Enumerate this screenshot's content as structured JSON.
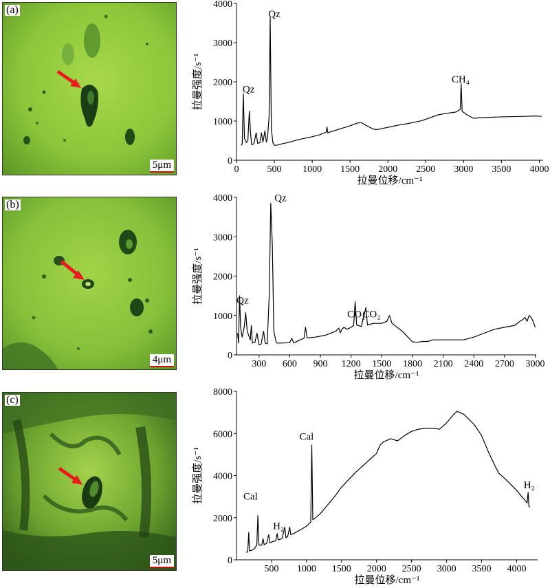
{
  "colors": {
    "photo_base": "#8fcc3a",
    "arrow": "#e81c1c",
    "scale_underline": "#d01010",
    "line": "#000000"
  },
  "photos": [
    {
      "label": "(a)",
      "scale": "5μm"
    },
    {
      "label": "(b)",
      "scale": "4μm"
    },
    {
      "label": "(c)",
      "scale": "5μm"
    }
  ],
  "chart_data": [
    {
      "type": "line",
      "xlabel": "拉曼位移/cm⁻¹",
      "ylabel": "拉曼强度/s⁻¹",
      "xlim": [
        0,
        4050
      ],
      "ylim": [
        0,
        4000
      ],
      "xticks": [
        0,
        500,
        1000,
        1500,
        2000,
        2500,
        3000,
        3500,
        4000
      ],
      "yticks": [
        0,
        1000,
        2000,
        3000,
        4000
      ],
      "annotations": [
        {
          "text": "Qz",
          "x": 160,
          "y": 1730
        },
        {
          "text": "Qz",
          "x": 500,
          "y": 3650
        },
        {
          "text": "CH₄",
          "x": 2960,
          "y": 1980
        }
      ],
      "points": [
        [
          60,
          380
        ],
        [
          75,
          420
        ],
        [
          90,
          1700
        ],
        [
          105,
          560
        ],
        [
          130,
          450
        ],
        [
          150,
          500
        ],
        [
          170,
          1250
        ],
        [
          185,
          700
        ],
        [
          200,
          400
        ],
        [
          230,
          420
        ],
        [
          260,
          700
        ],
        [
          280,
          430
        ],
        [
          310,
          450
        ],
        [
          330,
          700
        ],
        [
          350,
          460
        ],
        [
          375,
          750
        ],
        [
          395,
          460
        ],
        [
          410,
          600
        ],
        [
          430,
          1100
        ],
        [
          445,
          3650
        ],
        [
          460,
          800
        ],
        [
          480,
          450
        ],
        [
          500,
          380
        ],
        [
          550,
          390
        ],
        [
          600,
          420
        ],
        [
          700,
          460
        ],
        [
          800,
          520
        ],
        [
          900,
          560
        ],
        [
          1000,
          600
        ],
        [
          1100,
          650
        ],
        [
          1185,
          720
        ],
        [
          1195,
          850
        ],
        [
          1205,
          700
        ],
        [
          1300,
          760
        ],
        [
          1400,
          820
        ],
        [
          1500,
          880
        ],
        [
          1600,
          950
        ],
        [
          1650,
          960
        ],
        [
          1700,
          900
        ],
        [
          1800,
          800
        ],
        [
          1850,
          780
        ],
        [
          1950,
          820
        ],
        [
          2050,
          860
        ],
        [
          2150,
          900
        ],
        [
          2250,
          930
        ],
        [
          2350,
          970
        ],
        [
          2450,
          1010
        ],
        [
          2550,
          1080
        ],
        [
          2650,
          1150
        ],
        [
          2750,
          1190
        ],
        [
          2900,
          1230
        ],
        [
          2955,
          1300
        ],
        [
          2968,
          1950
        ],
        [
          2980,
          1250
        ],
        [
          3050,
          1150
        ],
        [
          3130,
          1070
        ],
        [
          3200,
          1080
        ],
        [
          3400,
          1100
        ],
        [
          3600,
          1110
        ],
        [
          3800,
          1120
        ],
        [
          3950,
          1130
        ],
        [
          4030,
          1120
        ]
      ]
    },
    {
      "type": "line",
      "xlabel": "拉曼位移/cm⁻¹",
      "ylabel": "拉曼强度/s⁻¹",
      "xlim": [
        80,
        3010
      ],
      "ylim": [
        0,
        4000
      ],
      "xticks": [
        300,
        600,
        900,
        1200,
        1500,
        1800,
        2100,
        2400,
        2700,
        3000
      ],
      "yticks": [
        0,
        1000,
        2000,
        3000,
        4000
      ],
      "annotations": [
        {
          "text": "Qz",
          "x": 140,
          "y": 1300
        },
        {
          "text": "Qz",
          "x": 510,
          "y": 3900
        },
        {
          "text": "CO₂",
          "x": 1250,
          "y": 950
        },
        {
          "text": "CO₂",
          "x": 1400,
          "y": 950
        }
      ],
      "points": [
        [
          90,
          550
        ],
        [
          100,
          300
        ],
        [
          110,
          1500
        ],
        [
          120,
          700
        ],
        [
          135,
          450
        ],
        [
          155,
          700
        ],
        [
          170,
          1070
        ],
        [
          185,
          600
        ],
        [
          215,
          380
        ],
        [
          225,
          750
        ],
        [
          235,
          300
        ],
        [
          260,
          320
        ],
        [
          280,
          550
        ],
        [
          300,
          260
        ],
        [
          320,
          270
        ],
        [
          345,
          600
        ],
        [
          360,
          300
        ],
        [
          380,
          280
        ],
        [
          400,
          1500
        ],
        [
          415,
          3850
        ],
        [
          430,
          2800
        ],
        [
          445,
          600
        ],
        [
          470,
          300
        ],
        [
          520,
          300
        ],
        [
          600,
          310
        ],
        [
          620,
          420
        ],
        [
          640,
          300
        ],
        [
          700,
          380
        ],
        [
          740,
          420
        ],
        [
          755,
          700
        ],
        [
          770,
          430
        ],
        [
          850,
          450
        ],
        [
          950,
          500
        ],
        [
          1050,
          600
        ],
        [
          1080,
          680
        ],
        [
          1095,
          560
        ],
        [
          1110,
          650
        ],
        [
          1130,
          700
        ],
        [
          1160,
          650
        ],
        [
          1200,
          700
        ],
        [
          1225,
          750
        ],
        [
          1240,
          1350
        ],
        [
          1255,
          760
        ],
        [
          1300,
          720
        ],
        [
          1345,
          1200
        ],
        [
          1360,
          760
        ],
        [
          1420,
          800
        ],
        [
          1500,
          800
        ],
        [
          1550,
          850
        ],
        [
          1575,
          1000
        ],
        [
          1600,
          800
        ],
        [
          1700,
          600
        ],
        [
          1800,
          330
        ],
        [
          1850,
          320
        ],
        [
          1900,
          340
        ],
        [
          1950,
          340
        ],
        [
          2000,
          380
        ],
        [
          2100,
          380
        ],
        [
          2200,
          380
        ],
        [
          2300,
          380
        ],
        [
          2400,
          450
        ],
        [
          2500,
          550
        ],
        [
          2600,
          650
        ],
        [
          2700,
          700
        ],
        [
          2800,
          750
        ],
        [
          2850,
          850
        ],
        [
          2880,
          900
        ],
        [
          2900,
          950
        ],
        [
          2920,
          850
        ],
        [
          2940,
          1000
        ],
        [
          2960,
          950
        ],
        [
          2980,
          850
        ],
        [
          3000,
          700
        ]
      ]
    },
    {
      "type": "line",
      "xlabel": "拉曼位移/cm⁻¹",
      "ylabel": "拉曼强度/s⁻¹",
      "xlim": [
        0,
        4300
      ],
      "ylim": [
        0,
        8000
      ],
      "xticks": [
        500,
        1000,
        1500,
        2000,
        2500,
        3000,
        3500,
        4000
      ],
      "yticks": [
        0,
        2000,
        4000,
        6000,
        8000
      ],
      "annotations": [
        {
          "text": "Cal",
          "x": 200,
          "y": 2850
        },
        {
          "text": "Cal",
          "x": 1000,
          "y": 5700
        },
        {
          "text": "H₂",
          "x": 600,
          "y": 1450
        },
        {
          "text": "H₂",
          "x": 4180,
          "y": 3400
        }
      ],
      "points": [
        [
          140,
          350
        ],
        [
          160,
          380
        ],
        [
          175,
          1300
        ],
        [
          185,
          420
        ],
        [
          220,
          450
        ],
        [
          260,
          550
        ],
        [
          290,
          700
        ],
        [
          305,
          2100
        ],
        [
          320,
          700
        ],
        [
          360,
          700
        ],
        [
          380,
          1000
        ],
        [
          395,
          720
        ],
        [
          430,
          780
        ],
        [
          460,
          1200
        ],
        [
          475,
          800
        ],
        [
          500,
          850
        ],
        [
          560,
          900
        ],
        [
          580,
          1250
        ],
        [
          595,
          950
        ],
        [
          650,
          1000
        ],
        [
          690,
          1550
        ],
        [
          705,
          1050
        ],
        [
          730,
          1100
        ],
        [
          760,
          1550
        ],
        [
          775,
          1200
        ],
        [
          820,
          1250
        ],
        [
          900,
          1400
        ],
        [
          1000,
          1600
        ],
        [
          1060,
          1800
        ],
        [
          1075,
          5450
        ],
        [
          1090,
          1900
        ],
        [
          1150,
          2050
        ],
        [
          1200,
          2200
        ],
        [
          1300,
          2600
        ],
        [
          1400,
          3000
        ],
        [
          1500,
          3450
        ],
        [
          1600,
          3800
        ],
        [
          1700,
          4150
        ],
        [
          1800,
          4450
        ],
        [
          1900,
          4750
        ],
        [
          2000,
          5050
        ],
        [
          2050,
          5450
        ],
        [
          2100,
          5600
        ],
        [
          2200,
          5750
        ],
        [
          2300,
          5650
        ],
        [
          2400,
          5900
        ],
        [
          2500,
          6100
        ],
        [
          2600,
          6200
        ],
        [
          2700,
          6250
        ],
        [
          2800,
          6250
        ],
        [
          2900,
          6200
        ],
        [
          3000,
          6500
        ],
        [
          3100,
          6900
        ],
        [
          3150,
          7050
        ],
        [
          3250,
          6900
        ],
        [
          3400,
          6400
        ],
        [
          3500,
          5900
        ],
        [
          3600,
          5100
        ],
        [
          3700,
          4400
        ],
        [
          3750,
          4100
        ],
        [
          3850,
          3800
        ],
        [
          4000,
          3300
        ],
        [
          4100,
          2900
        ],
        [
          4150,
          2700
        ],
        [
          4165,
          3200
        ],
        [
          4175,
          2550
        ],
        [
          4190,
          2500
        ]
      ]
    }
  ]
}
